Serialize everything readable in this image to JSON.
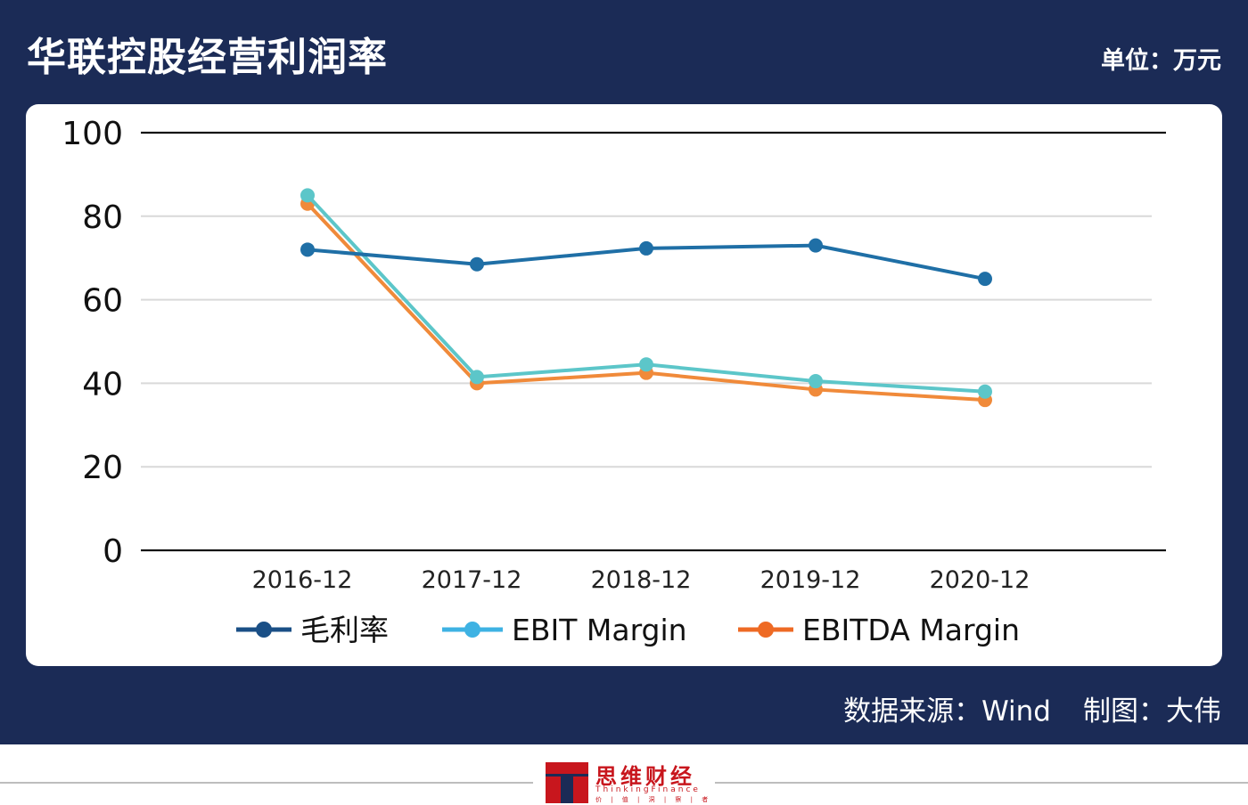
{
  "header": {
    "title": "华联控股经营利润率",
    "unit": "单位：万元"
  },
  "footer": {
    "source": "数据来源：Wind",
    "author": "制图：大伟"
  },
  "logo": {
    "name": "思维财经",
    "english": "ThinkingFinance",
    "slogan": "价 | 值 | 洞 | 察 | 者"
  },
  "colors": {
    "background": "#1b2b56",
    "gross": "#1f6fa6",
    "ebit": "#5cc6c9",
    "ebitda": "#f08a3a",
    "legend_gross": "#1a4f86",
    "legend_ebit": "#3eb2e3",
    "legend_ebitda": "#ee6a24"
  },
  "chart_data": {
    "type": "line",
    "categories": [
      "2016-12",
      "2017-12",
      "2018-12",
      "2019-12",
      "2020-12"
    ],
    "series": [
      {
        "name": "毛利率",
        "values": [
          72,
          68.5,
          72.3,
          73,
          65
        ]
      },
      {
        "name": "EBIT Margin",
        "values": [
          85,
          41.5,
          44.5,
          40.5,
          38
        ]
      },
      {
        "name": "EBITDA Margin",
        "values": [
          83,
          40,
          42.5,
          38.5,
          36
        ]
      }
    ],
    "ylim": [
      0,
      100
    ],
    "yticks": [
      "0",
      "20",
      "40",
      "60",
      "80",
      "100"
    ],
    "grid": true,
    "legend": "bottom"
  }
}
